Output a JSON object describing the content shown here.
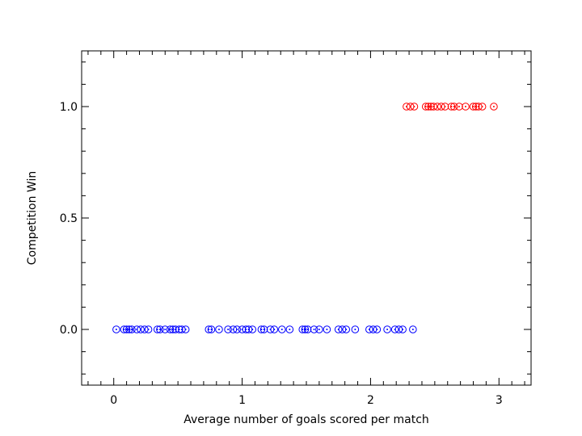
{
  "chart_data": {
    "type": "scatter",
    "title": "",
    "xlabel": "Average number of goals scored per match",
    "ylabel": "Competition Win",
    "xlim": [
      -0.25,
      3.25
    ],
    "ylim": [
      -0.25,
      1.25
    ],
    "x_ticks": [
      0,
      1,
      2,
      3
    ],
    "x_tick_labels": [
      "0",
      "1",
      "2",
      "3"
    ],
    "y_ticks": [
      0.0,
      0.5,
      1.0
    ],
    "y_tick_labels": [
      "0.0",
      "0.5",
      "1.0"
    ],
    "grid": false,
    "legend": "none",
    "marker": "circle-with-center-dot",
    "series": [
      {
        "color": "#0000ff",
        "points": [
          {
            "x": 0.02,
            "y": 0
          },
          {
            "x": 0.08,
            "y": 0
          },
          {
            "x": 0.1,
            "y": 0
          },
          {
            "x": 0.12,
            "y": 0
          },
          {
            "x": 0.14,
            "y": 0
          },
          {
            "x": 0.18,
            "y": 0
          },
          {
            "x": 0.21,
            "y": 0
          },
          {
            "x": 0.24,
            "y": 0
          },
          {
            "x": 0.27,
            "y": 0
          },
          {
            "x": 0.34,
            "y": 0
          },
          {
            "x": 0.36,
            "y": 0
          },
          {
            "x": 0.4,
            "y": 0
          },
          {
            "x": 0.44,
            "y": 0
          },
          {
            "x": 0.46,
            "y": 0
          },
          {
            "x": 0.48,
            "y": 0
          },
          {
            "x": 0.51,
            "y": 0
          },
          {
            "x": 0.53,
            "y": 0
          },
          {
            "x": 0.56,
            "y": 0
          },
          {
            "x": 0.74,
            "y": 0
          },
          {
            "x": 0.76,
            "y": 0
          },
          {
            "x": 0.82,
            "y": 0
          },
          {
            "x": 0.89,
            "y": 0
          },
          {
            "x": 0.93,
            "y": 0
          },
          {
            "x": 0.96,
            "y": 0
          },
          {
            "x": 1.0,
            "y": 0
          },
          {
            "x": 1.03,
            "y": 0
          },
          {
            "x": 1.05,
            "y": 0
          },
          {
            "x": 1.08,
            "y": 0
          },
          {
            "x": 1.15,
            "y": 0
          },
          {
            "x": 1.17,
            "y": 0
          },
          {
            "x": 1.22,
            "y": 0
          },
          {
            "x": 1.25,
            "y": 0
          },
          {
            "x": 1.31,
            "y": 0
          },
          {
            "x": 1.37,
            "y": 0
          },
          {
            "x": 1.47,
            "y": 0
          },
          {
            "x": 1.49,
            "y": 0
          },
          {
            "x": 1.51,
            "y": 0
          },
          {
            "x": 1.56,
            "y": 0
          },
          {
            "x": 1.6,
            "y": 0
          },
          {
            "x": 1.66,
            "y": 0
          },
          {
            "x": 1.75,
            "y": 0
          },
          {
            "x": 1.78,
            "y": 0
          },
          {
            "x": 1.81,
            "y": 0
          },
          {
            "x": 1.88,
            "y": 0
          },
          {
            "x": 1.99,
            "y": 0
          },
          {
            "x": 2.02,
            "y": 0
          },
          {
            "x": 2.05,
            "y": 0
          },
          {
            "x": 2.13,
            "y": 0
          },
          {
            "x": 2.19,
            "y": 0
          },
          {
            "x": 2.22,
            "y": 0
          },
          {
            "x": 2.25,
            "y": 0
          },
          {
            "x": 2.33,
            "y": 0
          }
        ]
      },
      {
        "color": "#ff0000",
        "points": [
          {
            "x": 2.28,
            "y": 1
          },
          {
            "x": 2.31,
            "y": 1
          },
          {
            "x": 2.34,
            "y": 1
          },
          {
            "x": 2.43,
            "y": 1
          },
          {
            "x": 2.45,
            "y": 1
          },
          {
            "x": 2.47,
            "y": 1
          },
          {
            "x": 2.49,
            "y": 1
          },
          {
            "x": 2.52,
            "y": 1
          },
          {
            "x": 2.55,
            "y": 1
          },
          {
            "x": 2.58,
            "y": 1
          },
          {
            "x": 2.63,
            "y": 1
          },
          {
            "x": 2.65,
            "y": 1
          },
          {
            "x": 2.69,
            "y": 1
          },
          {
            "x": 2.74,
            "y": 1
          },
          {
            "x": 2.8,
            "y": 1
          },
          {
            "x": 2.82,
            "y": 1
          },
          {
            "x": 2.84,
            "y": 1
          },
          {
            "x": 2.87,
            "y": 1
          },
          {
            "x": 2.96,
            "y": 1
          }
        ]
      }
    ]
  }
}
